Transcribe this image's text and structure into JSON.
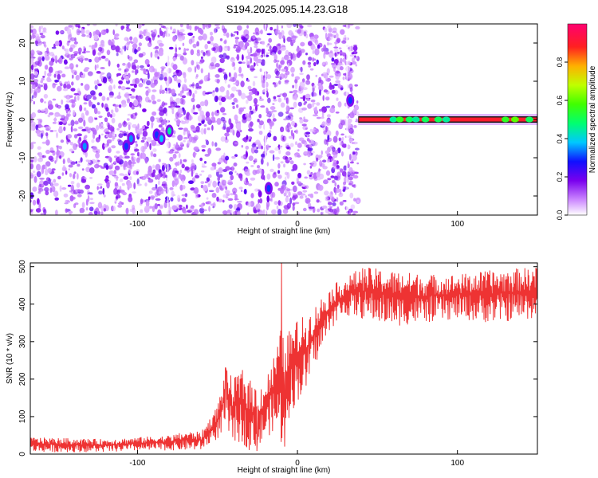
{
  "title": "S194.2025.095.14.23.G18",
  "chart_data": [
    {
      "type": "heatmap",
      "xlabel": "Height of straight line (km)",
      "ylabel": "Frequency (Hz)",
      "xlim": [
        -167,
        150
      ],
      "ylim": [
        -25,
        25
      ],
      "x_ticks": [
        -100,
        0,
        100
      ],
      "x_tick_labels": [
        "-100",
        "0",
        "100"
      ],
      "y_ticks": [
        -20,
        -10,
        0,
        10,
        20
      ],
      "y_tick_labels": [
        "-20",
        "-10",
        "0",
        "10",
        "20"
      ],
      "noise_region_x": [
        -167,
        38
      ],
      "empty_region_x": [
        38,
        150
      ],
      "signal_line": {
        "x_start": 38,
        "x_end": 150,
        "frequency": 0,
        "typical_amplitude": 0.9,
        "dips": [
          {
            "x": 60,
            "amplitude": 0.45
          },
          {
            "x": 64,
            "amplitude": 0.55
          },
          {
            "x": 70,
            "amplitude": 0.5
          },
          {
            "x": 74,
            "amplitude": 0.45
          },
          {
            "x": 80,
            "amplitude": 0.5
          },
          {
            "x": 88,
            "amplitude": 0.5
          },
          {
            "x": 93,
            "amplitude": 0.45
          },
          {
            "x": 130,
            "amplitude": 0.55
          },
          {
            "x": 136,
            "amplitude": 0.6
          },
          {
            "x": 145,
            "amplitude": 0.5
          }
        ]
      },
      "hot_spots": [
        {
          "x": -133,
          "y": -7,
          "amplitude": 0.35
        },
        {
          "x": -107,
          "y": -7,
          "amplitude": 0.3
        },
        {
          "x": -104,
          "y": -5,
          "amplitude": 0.35
        },
        {
          "x": -88,
          "y": -4,
          "amplitude": 0.3
        },
        {
          "x": -85,
          "y": -5,
          "amplitude": 0.38
        },
        {
          "x": -80,
          "y": -3,
          "amplitude": 0.45
        },
        {
          "x": -18,
          "y": -18,
          "amplitude": 0.3
        },
        {
          "x": 33,
          "y": 5,
          "amplitude": 0.3
        }
      ],
      "colorbar": {
        "label": "Normalized spectral amplitude",
        "range": [
          0,
          1
        ],
        "ticks": [
          "0.0",
          "0.2",
          "0.4",
          "0.6",
          "0.8"
        ]
      }
    },
    {
      "type": "line",
      "xlabel": "Height of straight line (km)",
      "ylabel": "SNR (10 * v/v)",
      "xlim": [
        -167,
        150
      ],
      "ylim": [
        0,
        510
      ],
      "x_ticks": [
        -100,
        0,
        100
      ],
      "x_tick_labels": [
        "-100",
        "0",
        "100"
      ],
      "y_ticks": [
        0,
        100,
        200,
        300,
        400,
        500
      ],
      "y_tick_labels": [
        "0",
        "100",
        "200",
        "300",
        "400",
        "500"
      ],
      "color": "#ee3333",
      "envelope": {
        "x": [
          -167,
          -120,
          -80,
          -70,
          -60,
          -50,
          -45,
          -40,
          -35,
          -30,
          -25,
          -20,
          -15,
          -10,
          -5,
          0,
          5,
          10,
          15,
          20,
          25,
          30,
          40,
          60,
          80,
          100,
          120,
          150
        ],
        "low": [
          5,
          5,
          10,
          10,
          10,
          40,
          60,
          30,
          30,
          10,
          5,
          40,
          60,
          20,
          100,
          140,
          160,
          230,
          270,
          330,
          350,
          370,
          360,
          340,
          350,
          360,
          350,
          360
        ],
        "high": [
          45,
          40,
          50,
          60,
          60,
          130,
          230,
          200,
          230,
          200,
          180,
          200,
          260,
          340,
          330,
          360,
          370,
          390,
          420,
          440,
          460,
          470,
          500,
          490,
          480,
          480,
          490,
          500
        ]
      },
      "spikes": [
        {
          "x": -10,
          "y": 510
        },
        {
          "x": -8,
          "y": 20
        },
        {
          "x": -45,
          "y": 230
        },
        {
          "x": -25,
          "y": 40
        }
      ]
    }
  ]
}
